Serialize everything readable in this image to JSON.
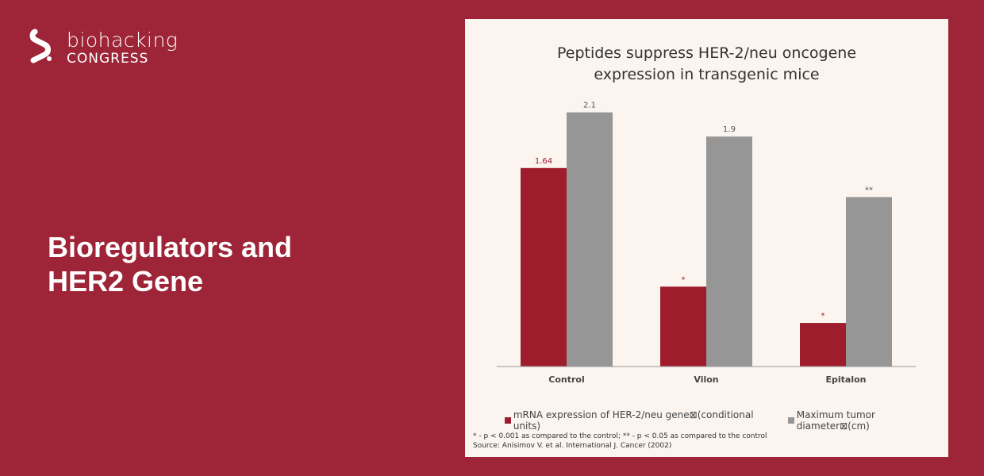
{
  "brand": {
    "name_top": "biohacking",
    "name_bottom": "CONGRESS",
    "logo_icon": "biohacking-s-logo-icon"
  },
  "headline": {
    "line1": "Bioregulators and",
    "line2": "HER2 Gene"
  },
  "colors": {
    "background": "#9e2437",
    "card": "#fbf4ef",
    "series_mrna": "#9e1c2c",
    "series_tumor": "#969696"
  },
  "chart_data": {
    "type": "bar",
    "title_lines": [
      "Peptides suppress HER-2/neu oncogene",
      "expression in transgenic mice"
    ],
    "categories": [
      "Control",
      "Vilon",
      "Epitalon"
    ],
    "series": [
      {
        "name": "mRNA expression of HER-2/neu gene⊠(conditional units)",
        "values": [
          1.64,
          0.66,
          0.36
        ],
        "labels": [
          "1.64",
          "*",
          "*"
        ]
      },
      {
        "name": "Maximum tumor diameter⊠(cm)",
        "values": [
          2.1,
          1.9,
          1.4
        ],
        "labels": [
          "2.1",
          "1.9",
          "**"
        ]
      }
    ],
    "ylim": [
      0,
      2.15
    ],
    "grid": false,
    "legend_position": "bottom",
    "footnote_lines": [
      "* - p < 0.001 as compared to the control; ** - p < 0.05 as compared to the control",
      "Source: Anisimov V. et al. International J. Cancer (2002)"
    ]
  }
}
